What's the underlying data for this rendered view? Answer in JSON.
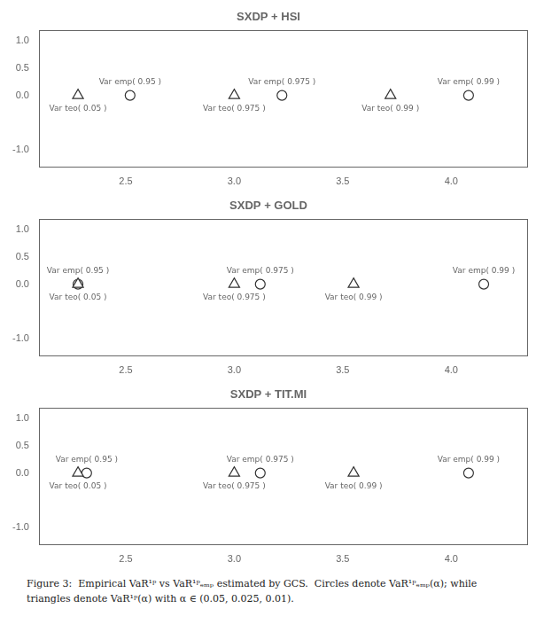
{
  "chart_data": [
    {
      "type": "scatter",
      "title": "SXDP + HSI",
      "series": [
        {
          "marker": "triangle",
          "color": "#333333",
          "x": [
            2.28,
            3.0,
            3.72
          ],
          "values": [
            0.0,
            0.0,
            0.0
          ],
          "labels": [
            "Var teo( 0.05 )",
            "Var teo( 0.975 )",
            "Var teo( 0.99 )"
          ]
        },
        {
          "marker": "circle",
          "color": "#333333",
          "x": [
            2.52,
            3.22,
            4.08
          ],
          "values": [
            0.0,
            0.0,
            0.0
          ],
          "labels": [
            "Var emp( 0.95 )",
            "Var emp( 0.975 )",
            "Var emp( 0.99 )"
          ]
        }
      ],
      "xlim": [
        2.1,
        4.35
      ],
      "xticks": [
        2.5,
        {
          "value": 3.0,
          "label": "3.0"
        },
        3.5,
        {
          "value": 4.0,
          "label": "4.0"
        }
      ],
      "ylim": [
        -1.3,
        1.2
      ],
      "yticks": [
        {
          "value": -1.0,
          "label": "-1.0"
        },
        {
          "value": 0.0,
          "label": "0.0"
        },
        0.5,
        {
          "value": 1.0,
          "label": "1.0"
        }
      ],
      "grid": false
    },
    {
      "type": "scatter",
      "title": "SXDP + GOLD",
      "series": [
        {
          "marker": "triangle",
          "color": "#333333",
          "x": [
            2.28,
            3.0,
            3.55
          ],
          "values": [
            0.0,
            0.0,
            0.0
          ],
          "labels": [
            "Var teo( 0.05 )",
            "Var teo( 0.975 )",
            "Var teo( 0.99 )"
          ]
        },
        {
          "marker": "circle",
          "color": "#333333",
          "x": [
            2.28,
            3.12,
            4.15
          ],
          "values": [
            0.0,
            0.0,
            0.0
          ],
          "labels": [
            "Var emp( 0.95 )",
            "Var emp( 0.975 )",
            "Var emp( 0.99 )"
          ]
        }
      ],
      "xlim": [
        2.1,
        4.35
      ],
      "xticks": [
        2.5,
        {
          "value": 3.0,
          "label": "3.0"
        },
        3.5,
        {
          "value": 4.0,
          "label": "4.0"
        }
      ],
      "ylim": [
        -1.3,
        1.2
      ],
      "yticks": [
        {
          "value": -1.0,
          "label": "-1.0"
        },
        {
          "value": 0.0,
          "label": "0.0"
        },
        0.5,
        {
          "value": 1.0,
          "label": "1.0"
        }
      ],
      "grid": false
    },
    {
      "type": "scatter",
      "title": "SXDP + TIT.MI",
      "series": [
        {
          "marker": "triangle",
          "color": "#333333",
          "x": [
            2.28,
            3.0,
            3.55
          ],
          "values": [
            0.0,
            0.0,
            0.0
          ],
          "labels": [
            "Var teo( 0.05 )",
            "Var teo( 0.975 )",
            "Var teo( 0.99 )"
          ]
        },
        {
          "marker": "circle",
          "color": "#333333",
          "x": [
            2.32,
            3.12,
            4.08
          ],
          "values": [
            0.0,
            0.0,
            0.0
          ],
          "labels": [
            "Var emp( 0.95 )",
            "Var emp( 0.975 )",
            "Var emp( 0.99 )"
          ]
        }
      ],
      "xlim": [
        2.1,
        4.35
      ],
      "xticks": [
        2.5,
        {
          "value": 3.0,
          "label": "3.0"
        },
        3.5,
        {
          "value": 4.0,
          "label": "4.0"
        }
      ],
      "ylim": [
        -1.3,
        1.2
      ],
      "yticks": [
        {
          "value": -1.0,
          "label": "-1.0"
        },
        {
          "value": 0.0,
          "label": "0.0"
        },
        0.5,
        {
          "value": 1.0,
          "label": "1.0"
        }
      ],
      "grid": false
    }
  ],
  "caption": [
    "Figure 3:  Empirical VaR¹ᵖ vs VaR¹ᵖₑₘₚ estimated by GCS.  Circles denote VaR¹ᵖₑₘₚ(α); while",
    "triangles denote VaR¹ᵖ(α) with α ∈ (0.05, 0.025, 0.01)."
  ]
}
